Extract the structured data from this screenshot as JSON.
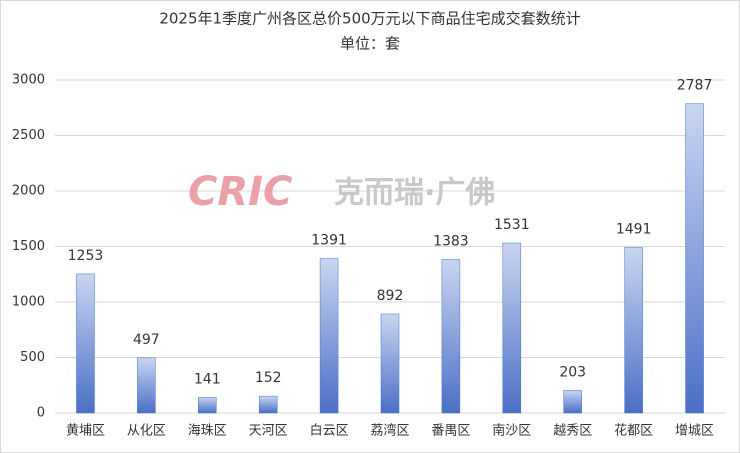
{
  "chart_data": {
    "type": "bar",
    "title": "2025年1季度广州各区总价500万元以下商品住宅成交套数统计",
    "subtitle": "单位：套",
    "watermark": [
      "CRIC",
      "克而瑞·广佛"
    ],
    "categories": [
      "黄埔区",
      "从化区",
      "海珠区",
      "天河区",
      "白云区",
      "荔湾区",
      "番禺区",
      "南沙区",
      "越秀区",
      "花都区",
      "增城区"
    ],
    "values": [
      1253,
      497,
      141,
      152,
      1391,
      892,
      1383,
      1531,
      203,
      1491,
      2787
    ],
    "color": "#4472c4",
    "ylim": [
      0,
      3000
    ],
    "yticks": [
      0,
      500,
      1000,
      1500,
      2000,
      2500,
      3000
    ],
    "grid": true
  }
}
